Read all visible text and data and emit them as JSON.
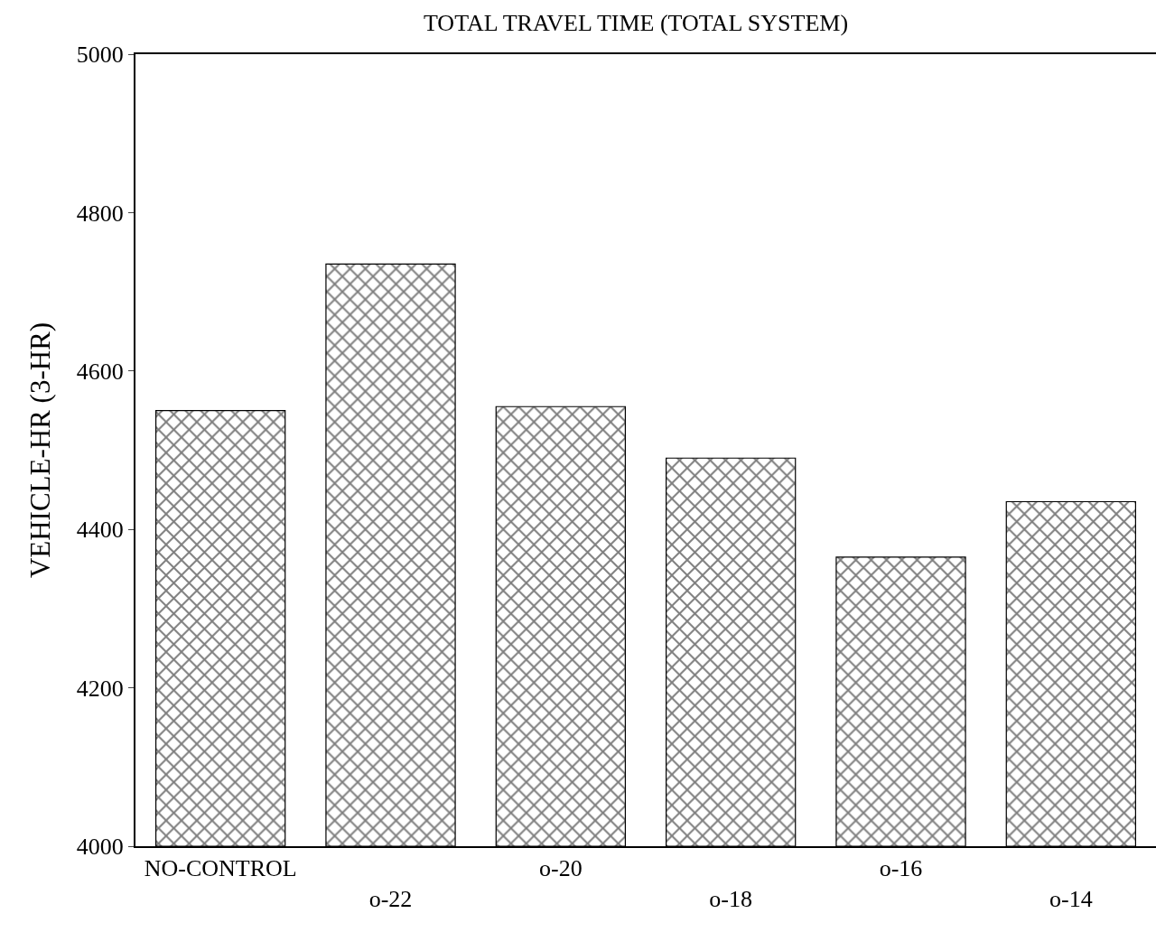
{
  "chart_data": {
    "type": "bar",
    "title": "TOTAL TRAVEL TIME (TOTAL SYSTEM)",
    "ylabel": "VEHICLE-HR (3-HR)",
    "categories": [
      "NO-CONTROL",
      "o-22",
      "o-20",
      "o-18",
      "o-16",
      "o-14"
    ],
    "values": [
      4550,
      4735,
      4555,
      4490,
      4365,
      4435
    ],
    "color": "#000000",
    "ylim": [
      4000,
      5000
    ],
    "yticks": [
      4000,
      4200,
      4400,
      4600,
      4800,
      5000
    ],
    "grid": false
  }
}
